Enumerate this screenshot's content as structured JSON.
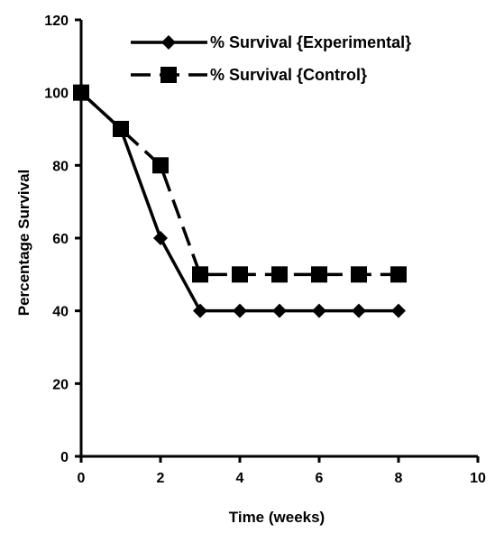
{
  "chart_data": {
    "type": "line",
    "title": "",
    "xlabel": "Time (weeks)",
    "ylabel": "Percentage Survival",
    "xlim": [
      0,
      10
    ],
    "ylim": [
      0,
      120
    ],
    "xticks": [
      0,
      2,
      4,
      6,
      8,
      10
    ],
    "yticks": [
      0,
      20,
      40,
      60,
      80,
      100,
      120
    ],
    "grid": false,
    "legend_position": "top-right",
    "series": [
      {
        "name": "% Survival {Experimental}",
        "marker": "diamond",
        "line_style": "solid",
        "color": "#000000",
        "x": [
          0,
          1,
          2,
          3,
          4,
          5,
          6,
          7,
          8
        ],
        "y": [
          100,
          90,
          60,
          40,
          40,
          40,
          40,
          40,
          40
        ]
      },
      {
        "name": "% Survival {Control}",
        "marker": "square",
        "line_style": "dashed",
        "color": "#000000",
        "x": [
          0,
          1,
          2,
          3,
          4,
          5,
          6,
          7,
          8
        ],
        "y": [
          100,
          90,
          80,
          50,
          50,
          50,
          50,
          50,
          50
        ]
      }
    ]
  }
}
